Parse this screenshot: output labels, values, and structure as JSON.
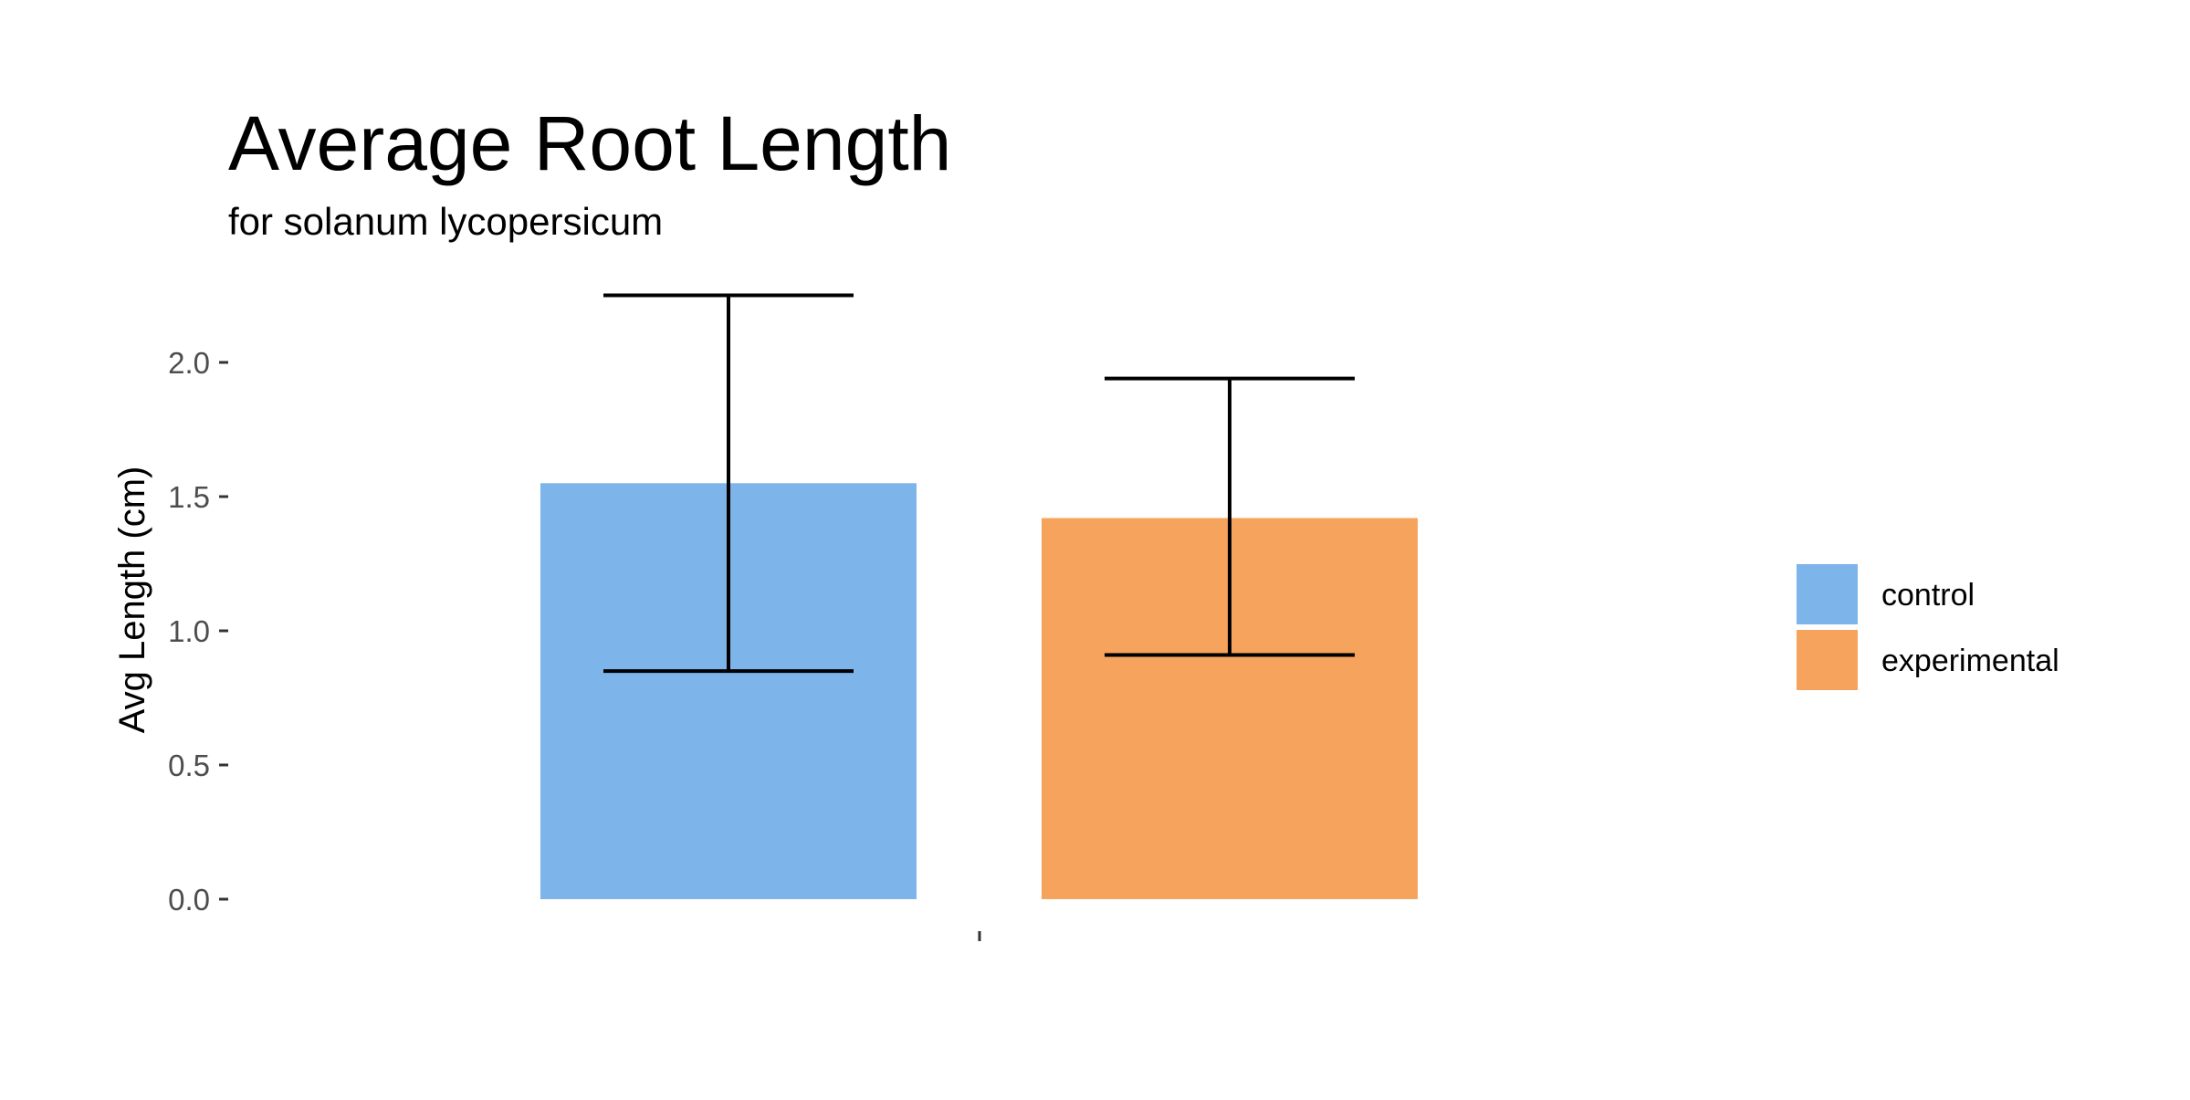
{
  "chart_data": {
    "type": "bar",
    "title": "Average Root Length",
    "subtitle": "for  solanum lycopersicum",
    "xlabel": "",
    "ylabel": "Avg Length (cm)",
    "ylim": [
      0,
      2.3
    ],
    "yticks": [
      {
        "value": 0.0,
        "label": "0.0"
      },
      {
        "value": 0.5,
        "label": "0.5"
      },
      {
        "value": 1.0,
        "label": "1.0"
      },
      {
        "value": 1.5,
        "label": "1.5"
      },
      {
        "value": 2.0,
        "label": "2.0"
      }
    ],
    "categories": [
      ""
    ],
    "series": [
      {
        "name": "control",
        "color": "#7db4ea",
        "values": [
          1.55
        ],
        "error_low": [
          0.85
        ],
        "error_high": [
          2.25
        ]
      },
      {
        "name": "experimental",
        "color": "#f6a45d",
        "values": [
          1.42
        ],
        "error_low": [
          0.91
        ],
        "error_high": [
          1.94
        ]
      }
    ],
    "grid": false,
    "legend_position": "right"
  }
}
